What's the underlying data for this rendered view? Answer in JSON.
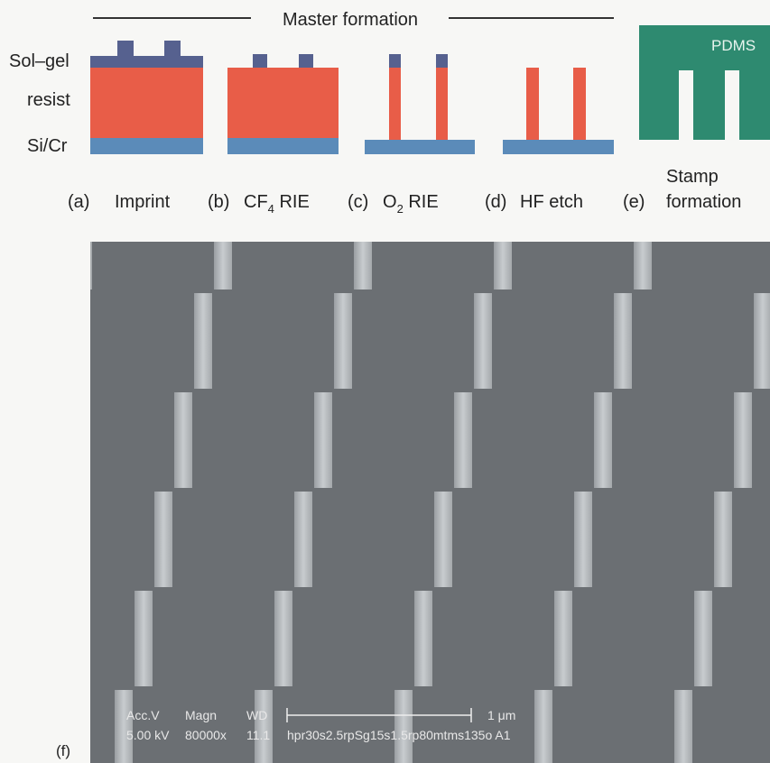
{
  "header": {
    "title": "Master formation"
  },
  "layers": {
    "sol_gel": "Sol–gel",
    "resist": "resist",
    "substrate": "Si/Cr"
  },
  "stamp_material": "PDMS",
  "steps": [
    {
      "label": "(a)",
      "name": "Imprint"
    },
    {
      "label": "(b)",
      "name": "CF",
      "sub": "4",
      "suffix": " RIE"
    },
    {
      "label": "(c)",
      "name": "O",
      "sub": "2",
      "suffix": " RIE"
    },
    {
      "label": "(d)",
      "name": "HF etch"
    },
    {
      "label": "(e)",
      "name": "Stamp",
      "name_line2": "formation"
    }
  ],
  "sem": {
    "label": "(f)",
    "headers": [
      "Acc.V",
      "Magn",
      "WD"
    ],
    "values": [
      "5.00 kV",
      "80000x",
      "11.1"
    ],
    "scale": "1 μm",
    "sample": "hpr30s2.5rpSg15s1.5rp80mtms135o A1"
  }
}
